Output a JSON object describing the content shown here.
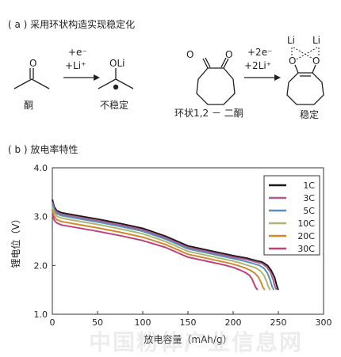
{
  "section_a": {
    "label": "( a ) 采用环状构造实现稳定化",
    "ketone_label": "酮",
    "product1_label": "不稳定",
    "cyclic_label": "环状1,2 － 二酮",
    "product2_label": "稳定",
    "arrow1_top": "+e⁻",
    "arrow1_bottom": "+Li⁺",
    "arrow2_top": "+2e⁻",
    "arrow2_bottom": "+2Li⁺",
    "atom_O": "O",
    "atom_OLi": "OLi",
    "atom_Li": "Li"
  },
  "section_b": {
    "label": "( b ) 放电率特性"
  },
  "chart_data": {
    "type": "line",
    "xlabel": "放电容量（mAh/g）",
    "ylabel": "锂电位（V）",
    "xlim": [
      0,
      300
    ],
    "ylim": [
      1.0,
      4.0
    ],
    "xticks": [
      "0",
      "50",
      "100",
      "150",
      "200",
      "250",
      "300"
    ],
    "yticks": [
      "1.0",
      "2.0",
      "3.0",
      "4.0"
    ],
    "legend_position": "top-right",
    "series": [
      {
        "name": "1C",
        "color": "#1a1a1a",
        "x": [
          0,
          2,
          5,
          10,
          25,
          50,
          75,
          100,
          125,
          150,
          175,
          200,
          215,
          225,
          232,
          238,
          242,
          246,
          248,
          250
        ],
        "y": [
          3.35,
          3.2,
          3.12,
          3.08,
          3.03,
          2.95,
          2.86,
          2.76,
          2.6,
          2.4,
          2.3,
          2.2,
          2.15,
          2.1,
          2.07,
          2.0,
          1.9,
          1.75,
          1.6,
          1.5
        ]
      },
      {
        "name": "3C",
        "color": "#b05a8a",
        "x": [
          0,
          2,
          5,
          10,
          25,
          50,
          75,
          100,
          125,
          150,
          175,
          200,
          215,
          225,
          232,
          237,
          241,
          244,
          246,
          248
        ],
        "y": [
          3.3,
          3.16,
          3.09,
          3.05,
          3.0,
          2.92,
          2.83,
          2.73,
          2.57,
          2.37,
          2.27,
          2.17,
          2.12,
          2.07,
          2.04,
          1.97,
          1.87,
          1.72,
          1.58,
          1.5
        ]
      },
      {
        "name": "5C",
        "color": "#5b8fc0",
        "x": [
          0,
          2,
          5,
          10,
          25,
          50,
          75,
          100,
          125,
          150,
          175,
          200,
          212,
          222,
          229,
          234,
          238,
          241,
          243,
          245
        ],
        "y": [
          3.25,
          3.12,
          3.06,
          3.02,
          2.97,
          2.89,
          2.8,
          2.7,
          2.54,
          2.34,
          2.24,
          2.14,
          2.09,
          2.04,
          2.0,
          1.94,
          1.84,
          1.7,
          1.57,
          1.5
        ]
      },
      {
        "name": "10C",
        "color": "#a9b878",
        "x": [
          0,
          2,
          5,
          10,
          25,
          50,
          75,
          100,
          125,
          150,
          175,
          200,
          210,
          218,
          225,
          230,
          234,
          237,
          239,
          241
        ],
        "y": [
          3.2,
          3.07,
          3.01,
          2.97,
          2.92,
          2.84,
          2.75,
          2.65,
          2.49,
          2.29,
          2.19,
          2.09,
          2.04,
          1.99,
          1.95,
          1.89,
          1.8,
          1.67,
          1.56,
          1.5
        ]
      },
      {
        "name": "20C",
        "color": "#d08a2a",
        "x": [
          0,
          2,
          5,
          10,
          25,
          50,
          75,
          100,
          125,
          150,
          175,
          195,
          205,
          213,
          219,
          224,
          228,
          231,
          233,
          235
        ],
        "y": [
          3.12,
          3.0,
          2.94,
          2.9,
          2.85,
          2.77,
          2.68,
          2.58,
          2.43,
          2.23,
          2.13,
          2.05,
          2.0,
          1.95,
          1.9,
          1.84,
          1.76,
          1.65,
          1.55,
          1.5
        ]
      },
      {
        "name": "30C",
        "color": "#c2407a",
        "x": [
          0,
          2,
          5,
          10,
          25,
          50,
          75,
          100,
          125,
          150,
          175,
          190,
          200,
          207,
          213,
          218,
          221,
          223,
          225,
          227
        ],
        "y": [
          3.05,
          2.93,
          2.87,
          2.83,
          2.78,
          2.7,
          2.61,
          2.51,
          2.37,
          2.17,
          2.07,
          2.01,
          1.96,
          1.91,
          1.86,
          1.8,
          1.72,
          1.63,
          1.55,
          1.5
        ]
      }
    ]
  },
  "watermark": "中国粉体产业信息网"
}
